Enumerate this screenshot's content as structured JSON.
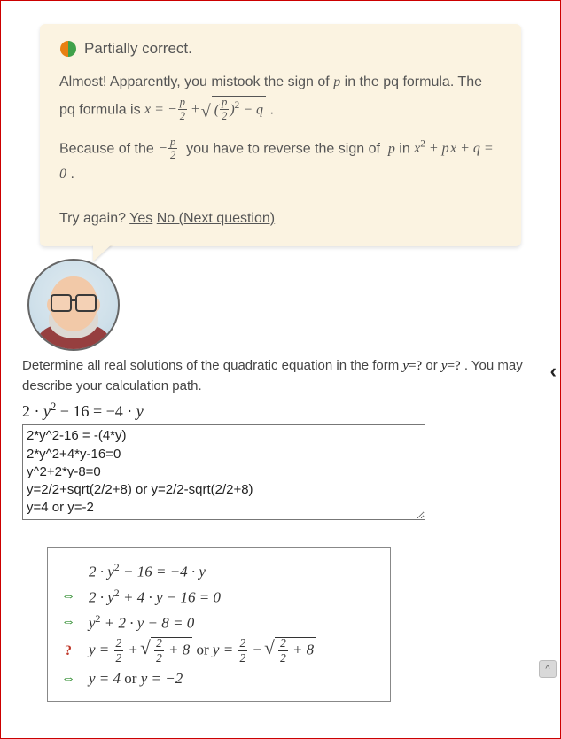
{
  "feedback": {
    "status_label": "Partially correct.",
    "status_icon_colors": {
      "left": "#e88012",
      "right": "#3fa14a"
    },
    "line1_a": "Almost! Apparently, you mistook the sign of ",
    "line1_b": " in the pq formula. The pq formula is  ",
    "line2_a": "Because of the ",
    "line2_b": " you have to reverse the sign of ",
    "line2_c": " in ",
    "try_label": "Try again? ",
    "yes": "Yes",
    "no": "No (Next question)"
  },
  "question": {
    "prompt_a": "Determine all real solutions of the quadratic equation in the form ",
    "prompt_b": " or  ",
    "prompt_c": " . You may describe your calculation path.",
    "equation_tex": "2 · y² − 16 = −4 · y",
    "answer_text": "2*y^2-16 = -(4*y)\n2*y^2+4*y-16=0\ny^2+2*y-8=0\ny=2/2+sqrt(2/2+8) or y=2/2-sqrt(2/2+8)\ny=4 or y=-2"
  },
  "chain": {
    "rows": [
      {
        "sym": "",
        "sym_class": "",
        "html": "2 · <i>y</i><span class='sup'>2</span> − 16 = −4 · <i>y</i>"
      },
      {
        "sym": "⇔",
        "sym_class": "green",
        "html": "2 · <i>y</i><span class='sup'>2</span> + 4 · <i>y</i> − 16 = 0"
      },
      {
        "sym": "⇔",
        "sym_class": "green",
        "html": "<i>y</i><span class='sup'>2</span> + 2 · <i>y</i> − 8 = 0"
      },
      {
        "sym": "?",
        "sym_class": "red",
        "html": "<i>y</i> = <span class='frac'><span class='n'>2</span><span class='d'>2</span></span> + <span class='sqrt'><span class='radicand'><span class='frac'><span class='n'>2</span><span class='d'>2</span></span> + 8</span></span> <span class='up'>or</span> <i>y</i> = <span class='frac'><span class='n'>2</span><span class='d'>2</span></span> − <span class='sqrt'><span class='radicand'><span class='frac'><span class='n'>2</span><span class='d'>2</span></span> + 8</span></span>"
      },
      {
        "sym": "⇔",
        "sym_class": "green",
        "html": "<i>y</i> = 4 <span class='up'>or</span> <i>y</i> = −2"
      }
    ]
  },
  "colors": {
    "feedback_bg": "#fbf3e1",
    "border": "#c00"
  }
}
